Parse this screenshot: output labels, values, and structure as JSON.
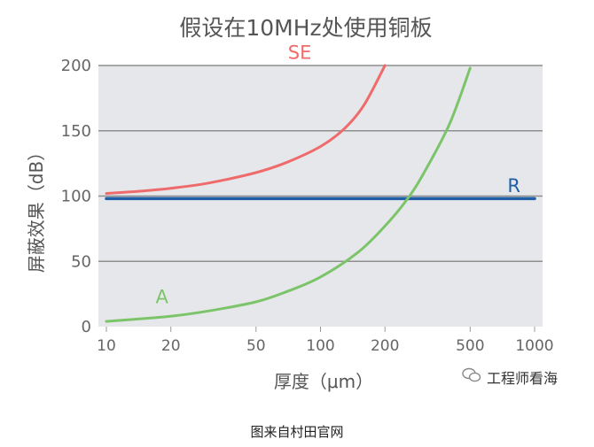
{
  "chart_data": {
    "type": "line",
    "title": "假设在10MHz处使用铜板",
    "xlabel": "厚度（μm）",
    "ylabel": "屏蔽效果（dB）",
    "xscale": "log",
    "xlim": [
      10,
      1000
    ],
    "ylim": [
      0,
      200
    ],
    "xticks": [
      10,
      20,
      50,
      100,
      200,
      500,
      1000
    ],
    "xtick_labels": [
      "10",
      "20",
      "50",
      "100",
      "200",
      "500",
      "1000"
    ],
    "yticks": [
      0,
      50,
      100,
      150,
      200
    ],
    "ytick_labels": [
      "0",
      "50",
      "100",
      "150",
      "200"
    ],
    "grid": "horizontal",
    "series": [
      {
        "name": "SE",
        "color": "#ef6b6b",
        "x": [
          10,
          15,
          20,
          30,
          50,
          70,
          100,
          130,
          160,
          200
        ],
        "y": [
          102,
          104,
          106,
          110,
          118,
          126,
          138,
          152,
          170,
          200
        ]
      },
      {
        "name": "R",
        "color": "#1f5fa8",
        "x": [
          10,
          1000
        ],
        "y": [
          98,
          98
        ]
      },
      {
        "name": "A",
        "color": "#7cc46a",
        "x": [
          10,
          20,
          30,
          50,
          70,
          100,
          150,
          200,
          250,
          300,
          400,
          500
        ],
        "y": [
          4,
          8,
          12,
          19,
          27,
          38,
          57,
          77,
          96,
          116,
          155,
          198
        ]
      }
    ]
  },
  "watermark": {
    "icon": "wechat-icon",
    "text": "工程师看海"
  },
  "caption": "图来自村田官网"
}
